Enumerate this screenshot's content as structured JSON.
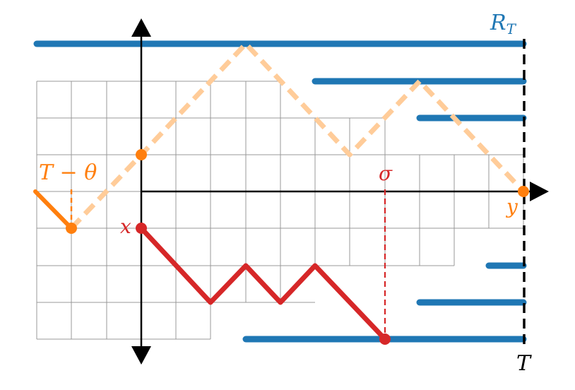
{
  "labels": {
    "region": "R",
    "region_sub": "T",
    "time_mark": "T",
    "shift_label": "T − θ",
    "start_label": "x",
    "end_label": "y",
    "stop_label": "σ"
  },
  "colors": {
    "blue": "#1f77b4",
    "orange": "#ff7f0e",
    "orange_light": "#ffcc99",
    "red": "#d62728",
    "grid": "#999999",
    "axis": "#000000"
  }
}
